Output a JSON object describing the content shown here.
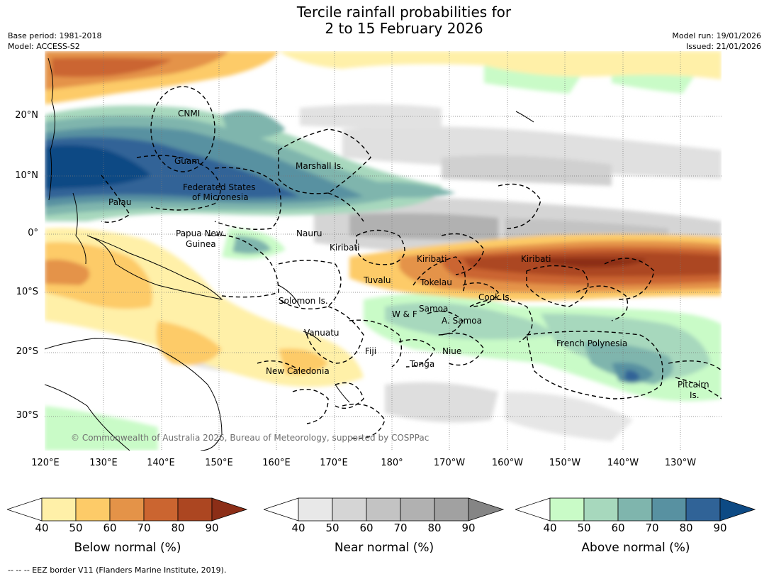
{
  "header": {
    "title_line1": "Tercile rainfall probabilities for",
    "title_line2": "2 to 15 February 2026",
    "base_period": "Base period: 1981-2018",
    "model": "Model: ACCESS-S2",
    "model_run": "Model run: 19/01/2026",
    "issued": "Issued: 21/01/2026"
  },
  "map": {
    "lat_labels": [
      "20°N",
      "10°N",
      "0°",
      "10°S",
      "20°S",
      "30°S"
    ],
    "lon_labels": [
      "120°E",
      "130°E",
      "140°E",
      "150°E",
      "160°E",
      "170°E",
      "180°",
      "170°W",
      "160°W",
      "150°W",
      "140°W",
      "130°W"
    ],
    "places": {
      "cnmi": "CNMI",
      "guam": "Guam",
      "marshall": "Marshall Is.",
      "fsm_line1": "Federated States",
      "fsm_line2": "of Micronesia",
      "palau": "Palau",
      "png_line1": "Papua New",
      "png_line2": "Guinea",
      "nauru": "Nauru",
      "kiribati_w": "Kiribati",
      "kiribati_c": "Kiribati",
      "kiribati_e": "Kiribati",
      "tuvalu": "Tuvalu",
      "tokelau": "Tokelau",
      "cook": "Cook Is.",
      "solomon": "Solomon Is.",
      "samoa": "Samoa",
      "wallis": "W & F",
      "am_samoa": "A. Samoa",
      "vanuatu": "Vanuatu",
      "fiji": "Fiji",
      "niue": "Niue",
      "french_polynesia": "French Polynesia",
      "tonga": "Tonga",
      "new_caledonia": "New Caledonia",
      "pitcairn_line1": "Pitcairn",
      "pitcairn_line2": "Is."
    },
    "copyright": "© Commonwealth of Australia 2026, Bureau of Meteorology, supported by COSPPac"
  },
  "legend": {
    "ticks": [
      "40",
      "50",
      "60",
      "70",
      "80",
      "90"
    ],
    "below": {
      "title": "Below normal (%)",
      "colors": [
        "#fff0a8",
        "#fdcb68",
        "#e49348",
        "#cb6530",
        "#ac4621",
        "#8c2e17"
      ]
    },
    "near": {
      "title": "Near normal (%)",
      "colors": [
        "#e8e8e8",
        "#d5d5d5",
        "#c3c3c3",
        "#b1b1b1",
        "#a1a1a1",
        "#858585"
      ]
    },
    "above": {
      "title": "Above normal (%)",
      "colors": [
        "#c9fbc7",
        "#a7d8bd",
        "#7fb5ad",
        "#5891a1",
        "#306397",
        "#0d4a84"
      ]
    }
  },
  "footnote": "--  --  -- EEZ border V11 (Flanders Marine Institute, 2019)."
}
